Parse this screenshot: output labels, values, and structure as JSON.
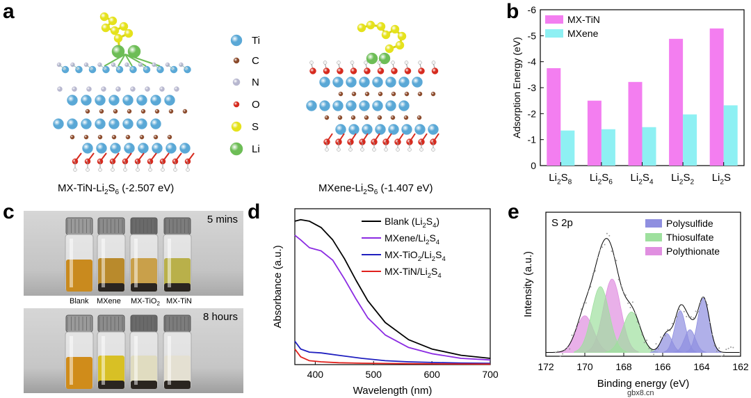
{
  "panels": {
    "a": {
      "label": "a",
      "legend": [
        {
          "symbol": "Ti",
          "color": "#5aa8d6"
        },
        {
          "symbol": "C",
          "color": "#8b4a2b"
        },
        {
          "symbol": "N",
          "color": "#b7b7cf"
        },
        {
          "symbol": "O",
          "color": "#d62a1e"
        },
        {
          "symbol": "S",
          "color": "#e5e21c"
        },
        {
          "symbol": "Li",
          "color": "#6dbd56"
        }
      ],
      "structure_left_caption_main": "MX-TiN-Li",
      "structure_left_caption_sub": "2",
      "structure_left_caption_mid": "S",
      "structure_left_caption_sub2": "6",
      "structure_left_caption_energy": " (-2.507 eV)",
      "structure_right_caption_main": "MXene-Li",
      "structure_right_caption_sub": "2",
      "structure_right_caption_mid": "S",
      "structure_right_caption_sub2": "6",
      "structure_right_caption_energy": " (-1.407 eV)"
    },
    "b": {
      "label": "b"
    },
    "c": {
      "label": "c",
      "time_top": "5 mins",
      "time_bottom": "8 hours",
      "vial_labels": [
        "Blank",
        "MXene",
        "MX-TiO",
        "MX-TiN"
      ],
      "vial_label_sub": "2"
    },
    "d": {
      "label": "d"
    },
    "e": {
      "label": "e"
    }
  },
  "watermark": "gbx8.cn",
  "chart_data": [
    {
      "id": "b",
      "type": "bar",
      "title": "",
      "ylabel": "Adsorption Energy (eV)",
      "xlabel": "",
      "categories": [
        "Li2S8",
        "Li2S6",
        "Li2S4",
        "Li2S2",
        "Li2S"
      ],
      "category_labels": [
        {
          "base": "Li",
          "s1": "2",
          "mid": "S",
          "s2": "8"
        },
        {
          "base": "Li",
          "s1": "2",
          "mid": "S",
          "s2": "6"
        },
        {
          "base": "Li",
          "s1": "2",
          "mid": "S",
          "s2": "4"
        },
        {
          "base": "Li",
          "s1": "2",
          "mid": "S",
          "s2": "2"
        },
        {
          "base": "Li",
          "s1": "2",
          "mid": "S",
          "s2": ""
        }
      ],
      "series": [
        {
          "name": "MX-TiN",
          "color": "#f37ef0",
          "values": [
            -3.75,
            -2.5,
            -3.22,
            -4.88,
            -5.28
          ]
        },
        {
          "name": "MXene",
          "color": "#8ef0f3",
          "values": [
            -1.35,
            -1.4,
            -1.48,
            -1.97,
            -2.32
          ]
        }
      ],
      "ylim": [
        0,
        -6
      ],
      "yticks": [
        0,
        -1,
        -2,
        -3,
        -4,
        -5,
        -6
      ],
      "legend_position": "top-left"
    },
    {
      "id": "d",
      "type": "line",
      "xlabel": "Wavelength (nm)",
      "ylabel": "Absorbance (a.u.)",
      "xlim": [
        365,
        700
      ],
      "ylim": [
        0,
        1
      ],
      "xticks": [
        400,
        500,
        600,
        700
      ],
      "series": [
        {
          "name": "Blank (Li2S4)",
          "label_parts": {
            "pre": "Blank (Li",
            "s1": "2",
            "mid": "S",
            "s2": "4",
            "post": ")"
          },
          "color": "#000000",
          "x": [
            365,
            375,
            390,
            410,
            430,
            450,
            470,
            490,
            520,
            560,
            600,
            650,
            700
          ],
          "y": [
            0.92,
            0.93,
            0.92,
            0.88,
            0.8,
            0.68,
            0.54,
            0.41,
            0.27,
            0.16,
            0.1,
            0.06,
            0.04
          ]
        },
        {
          "name": "MXene/Li2S4",
          "label_parts": {
            "pre": "MXene/Li",
            "s1": "2",
            "mid": "S",
            "s2": "4",
            "post": ""
          },
          "color": "#8b2be2",
          "x": [
            365,
            375,
            390,
            410,
            430,
            450,
            470,
            490,
            520,
            560,
            600,
            650,
            700
          ],
          "y": [
            0.83,
            0.8,
            0.75,
            0.73,
            0.67,
            0.55,
            0.42,
            0.3,
            0.19,
            0.11,
            0.07,
            0.04,
            0.03
          ]
        },
        {
          "name": "MX-TiO2/Li2S4",
          "label_parts": {
            "pre": "MX-TiO",
            "s1": "2",
            "mid": "/Li",
            "s2": "2",
            "post": "S",
            "s3": "4"
          },
          "color": "#1f1fbf",
          "x": [
            365,
            375,
            390,
            410,
            440,
            480,
            520,
            560,
            600,
            650,
            700
          ],
          "y": [
            0.15,
            0.1,
            0.08,
            0.075,
            0.06,
            0.04,
            0.025,
            0.018,
            0.014,
            0.01,
            0.008
          ]
        },
        {
          "name": "MX-TiN/Li2S4",
          "label_parts": {
            "pre": "MX-TiN/Li",
            "s1": "2",
            "mid": "S",
            "s2": "4",
            "post": ""
          },
          "color": "#e0201c",
          "x": [
            365,
            375,
            390,
            410,
            440,
            480,
            520,
            560,
            600,
            650,
            700
          ],
          "y": [
            0.1,
            0.05,
            0.025,
            0.018,
            0.012,
            0.009,
            0.007,
            0.006,
            0.005,
            0.004,
            0.003
          ]
        }
      ]
    },
    {
      "id": "e",
      "type": "line",
      "title": "S 2p",
      "xlabel": "Binding energy (eV)",
      "ylabel": "Intensity (a.u.)",
      "xlim": [
        172,
        162
      ],
      "ylim": [
        0,
        1
      ],
      "xticks": [
        172,
        170,
        168,
        166,
        164,
        162
      ],
      "legend": [
        {
          "name": "Polysulfide",
          "color": "#8f8fe0"
        },
        {
          "name": "Thiosulfate",
          "color": "#9ee09e"
        },
        {
          "name": "Polythionate",
          "color": "#e08fe0"
        }
      ],
      "peaks": [
        {
          "group": "Polythionate",
          "center": 170.0,
          "height": 0.29,
          "width": 0.45
        },
        {
          "group": "Polythionate",
          "center": 168.6,
          "height": 0.58,
          "width": 0.45
        },
        {
          "group": "Thiosulfate",
          "center": 169.2,
          "height": 0.52,
          "width": 0.45
        },
        {
          "group": "Thiosulfate",
          "center": 167.6,
          "height": 0.32,
          "width": 0.45
        },
        {
          "group": "Polysulfide",
          "center": 165.8,
          "height": 0.15,
          "width": 0.28
        },
        {
          "group": "Polysulfide",
          "center": 165.1,
          "height": 0.33,
          "width": 0.28
        },
        {
          "group": "Polysulfide",
          "center": 164.6,
          "height": 0.18,
          "width": 0.28
        },
        {
          "group": "Polysulfide",
          "center": 163.9,
          "height": 0.43,
          "width": 0.3
        }
      ]
    }
  ]
}
